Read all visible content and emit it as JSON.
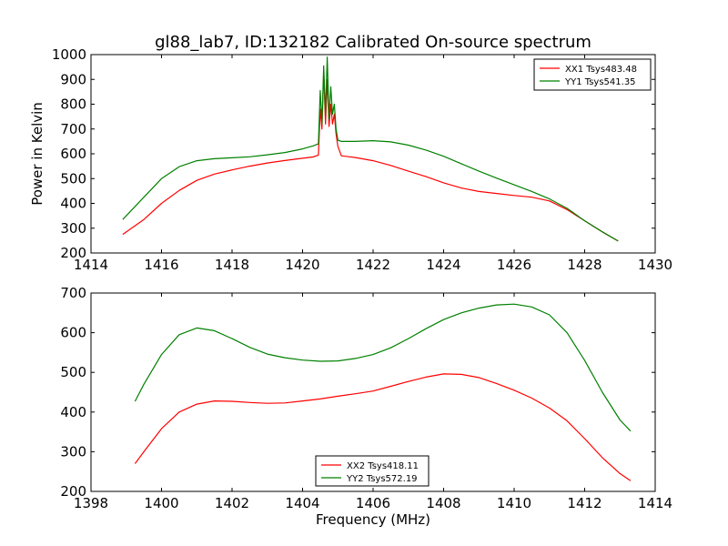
{
  "chart_data": [
    {
      "type": "line",
      "title": "gl88_lab7, ID:132182 Calibrated On-source spectrum",
      "xlabel": "",
      "ylabel": "Power in Kelvin",
      "xlim": [
        1414,
        1430
      ],
      "ylim": [
        200,
        1000
      ],
      "xticks": [
        1414,
        1416,
        1418,
        1420,
        1422,
        1424,
        1426,
        1428,
        1430
      ],
      "yticks": [
        200,
        300,
        400,
        500,
        600,
        700,
        800,
        900,
        1000
      ],
      "legend_position": "top-right",
      "series": [
        {
          "name": "XX1 Tsys483.48",
          "color": "#ff0000",
          "x": [
            1414.9,
            1415.5,
            1416.0,
            1416.5,
            1417.0,
            1417.5,
            1418.0,
            1418.5,
            1419.0,
            1419.5,
            1420.0,
            1420.3,
            1420.45,
            1420.5,
            1420.55,
            1420.6,
            1420.65,
            1420.7,
            1420.75,
            1420.8,
            1420.85,
            1420.9,
            1420.95,
            1421.0,
            1421.1,
            1421.5,
            1422.0,
            1422.5,
            1423.0,
            1423.5,
            1424.0,
            1424.5,
            1425.0,
            1425.5,
            1426.0,
            1426.5,
            1427.0,
            1427.5,
            1428.0,
            1428.5,
            1428.95
          ],
          "values": [
            275,
            335,
            400,
            452,
            493,
            518,
            535,
            550,
            563,
            573,
            582,
            587,
            595,
            780,
            700,
            930,
            720,
            900,
            710,
            800,
            720,
            760,
            680,
            630,
            592,
            585,
            572,
            553,
            530,
            508,
            483,
            462,
            448,
            440,
            432,
            425,
            410,
            375,
            330,
            285,
            248
          ]
        },
        {
          "name": "YY1 Tsys541.35",
          "color": "#008000",
          "x": [
            1414.9,
            1415.5,
            1416.0,
            1416.5,
            1417.0,
            1417.5,
            1418.0,
            1418.5,
            1419.0,
            1419.5,
            1420.0,
            1420.3,
            1420.45,
            1420.5,
            1420.55,
            1420.6,
            1420.65,
            1420.7,
            1420.75,
            1420.8,
            1420.85,
            1420.9,
            1420.95,
            1421.0,
            1421.1,
            1421.5,
            1422.0,
            1422.5,
            1423.0,
            1423.5,
            1424.0,
            1424.5,
            1425.0,
            1425.5,
            1426.0,
            1426.5,
            1427.0,
            1427.5,
            1428.0,
            1428.5,
            1428.95
          ],
          "values": [
            335,
            425,
            500,
            548,
            572,
            580,
            584,
            588,
            596,
            605,
            620,
            632,
            640,
            855,
            720,
            955,
            760,
            990,
            740,
            870,
            760,
            800,
            700,
            655,
            650,
            650,
            653,
            648,
            635,
            615,
            590,
            560,
            530,
            502,
            475,
            448,
            418,
            380,
            330,
            285,
            248
          ]
        }
      ]
    },
    {
      "type": "line",
      "title": "",
      "xlabel": "Frequency (MHz)",
      "ylabel": "",
      "xlim": [
        1398,
        1414
      ],
      "ylim": [
        200,
        700
      ],
      "xticks": [
        1398,
        1400,
        1402,
        1404,
        1406,
        1408,
        1410,
        1412,
        1414
      ],
      "yticks": [
        200,
        300,
        400,
        500,
        600,
        700
      ],
      "legend_position": "bottom-center",
      "series": [
        {
          "name": "XX2 Tsys418.11",
          "color": "#ff0000",
          "x": [
            1399.25,
            1399.5,
            1400.0,
            1400.5,
            1401.0,
            1401.5,
            1402.0,
            1402.5,
            1403.0,
            1403.5,
            1404.0,
            1404.5,
            1405.0,
            1405.5,
            1406.0,
            1406.5,
            1407.0,
            1407.5,
            1408.0,
            1408.5,
            1409.0,
            1409.5,
            1410.0,
            1410.5,
            1411.0,
            1411.5,
            1412.0,
            1412.5,
            1413.0,
            1413.3
          ],
          "values": [
            270,
            300,
            358,
            400,
            420,
            428,
            427,
            424,
            422,
            423,
            428,
            433,
            440,
            446,
            453,
            465,
            477,
            488,
            496,
            495,
            487,
            472,
            455,
            435,
            410,
            378,
            333,
            285,
            245,
            227
          ]
        },
        {
          "name": "YY2 Tsys572.19",
          "color": "#008000",
          "x": [
            1399.25,
            1399.5,
            1400.0,
            1400.5,
            1401.0,
            1401.5,
            1402.0,
            1402.5,
            1403.0,
            1403.5,
            1404.0,
            1404.5,
            1405.0,
            1405.5,
            1406.0,
            1406.5,
            1407.0,
            1407.5,
            1408.0,
            1408.5,
            1409.0,
            1409.5,
            1410.0,
            1410.5,
            1411.0,
            1411.5,
            1412.0,
            1412.5,
            1413.0,
            1413.3
          ],
          "values": [
            427,
            470,
            545,
            595,
            612,
            605,
            585,
            563,
            546,
            537,
            531,
            528,
            529,
            535,
            545,
            562,
            585,
            610,
            633,
            650,
            662,
            670,
            672,
            665,
            645,
            600,
            530,
            450,
            380,
            352
          ]
        }
      ]
    }
  ]
}
